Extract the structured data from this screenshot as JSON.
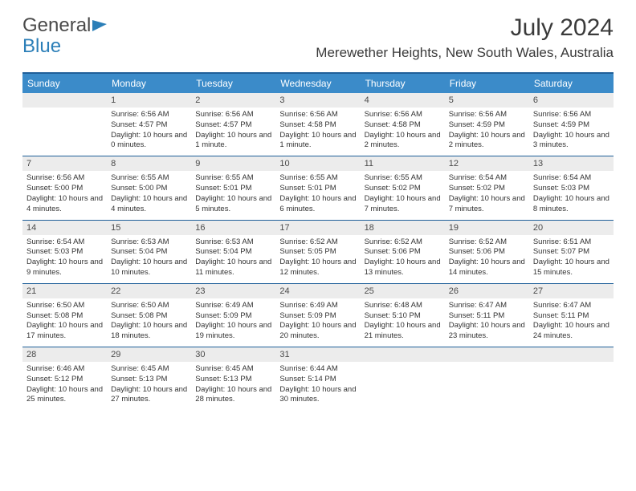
{
  "brand": {
    "part1": "General",
    "part2": "Blue"
  },
  "title": "July 2024",
  "location": "Merewether Heights, New South Wales, Australia",
  "colors": {
    "header_bg": "#3b8bc9",
    "rule": "#1f5f99",
    "daynum_bg": "#ececec",
    "text": "#333333"
  },
  "dow": [
    "Sunday",
    "Monday",
    "Tuesday",
    "Wednesday",
    "Thursday",
    "Friday",
    "Saturday"
  ],
  "weeks": [
    [
      {
        "n": "",
        "sr": "",
        "ss": "",
        "dl": ""
      },
      {
        "n": "1",
        "sr": "Sunrise: 6:56 AM",
        "ss": "Sunset: 4:57 PM",
        "dl": "Daylight: 10 hours and 0 minutes."
      },
      {
        "n": "2",
        "sr": "Sunrise: 6:56 AM",
        "ss": "Sunset: 4:57 PM",
        "dl": "Daylight: 10 hours and 1 minute."
      },
      {
        "n": "3",
        "sr": "Sunrise: 6:56 AM",
        "ss": "Sunset: 4:58 PM",
        "dl": "Daylight: 10 hours and 1 minute."
      },
      {
        "n": "4",
        "sr": "Sunrise: 6:56 AM",
        "ss": "Sunset: 4:58 PM",
        "dl": "Daylight: 10 hours and 2 minutes."
      },
      {
        "n": "5",
        "sr": "Sunrise: 6:56 AM",
        "ss": "Sunset: 4:59 PM",
        "dl": "Daylight: 10 hours and 2 minutes."
      },
      {
        "n": "6",
        "sr": "Sunrise: 6:56 AM",
        "ss": "Sunset: 4:59 PM",
        "dl": "Daylight: 10 hours and 3 minutes."
      }
    ],
    [
      {
        "n": "7",
        "sr": "Sunrise: 6:56 AM",
        "ss": "Sunset: 5:00 PM",
        "dl": "Daylight: 10 hours and 4 minutes."
      },
      {
        "n": "8",
        "sr": "Sunrise: 6:55 AM",
        "ss": "Sunset: 5:00 PM",
        "dl": "Daylight: 10 hours and 4 minutes."
      },
      {
        "n": "9",
        "sr": "Sunrise: 6:55 AM",
        "ss": "Sunset: 5:01 PM",
        "dl": "Daylight: 10 hours and 5 minutes."
      },
      {
        "n": "10",
        "sr": "Sunrise: 6:55 AM",
        "ss": "Sunset: 5:01 PM",
        "dl": "Daylight: 10 hours and 6 minutes."
      },
      {
        "n": "11",
        "sr": "Sunrise: 6:55 AM",
        "ss": "Sunset: 5:02 PM",
        "dl": "Daylight: 10 hours and 7 minutes."
      },
      {
        "n": "12",
        "sr": "Sunrise: 6:54 AM",
        "ss": "Sunset: 5:02 PM",
        "dl": "Daylight: 10 hours and 7 minutes."
      },
      {
        "n": "13",
        "sr": "Sunrise: 6:54 AM",
        "ss": "Sunset: 5:03 PM",
        "dl": "Daylight: 10 hours and 8 minutes."
      }
    ],
    [
      {
        "n": "14",
        "sr": "Sunrise: 6:54 AM",
        "ss": "Sunset: 5:03 PM",
        "dl": "Daylight: 10 hours and 9 minutes."
      },
      {
        "n": "15",
        "sr": "Sunrise: 6:53 AM",
        "ss": "Sunset: 5:04 PM",
        "dl": "Daylight: 10 hours and 10 minutes."
      },
      {
        "n": "16",
        "sr": "Sunrise: 6:53 AM",
        "ss": "Sunset: 5:04 PM",
        "dl": "Daylight: 10 hours and 11 minutes."
      },
      {
        "n": "17",
        "sr": "Sunrise: 6:52 AM",
        "ss": "Sunset: 5:05 PM",
        "dl": "Daylight: 10 hours and 12 minutes."
      },
      {
        "n": "18",
        "sr": "Sunrise: 6:52 AM",
        "ss": "Sunset: 5:06 PM",
        "dl": "Daylight: 10 hours and 13 minutes."
      },
      {
        "n": "19",
        "sr": "Sunrise: 6:52 AM",
        "ss": "Sunset: 5:06 PM",
        "dl": "Daylight: 10 hours and 14 minutes."
      },
      {
        "n": "20",
        "sr": "Sunrise: 6:51 AM",
        "ss": "Sunset: 5:07 PM",
        "dl": "Daylight: 10 hours and 15 minutes."
      }
    ],
    [
      {
        "n": "21",
        "sr": "Sunrise: 6:50 AM",
        "ss": "Sunset: 5:08 PM",
        "dl": "Daylight: 10 hours and 17 minutes."
      },
      {
        "n": "22",
        "sr": "Sunrise: 6:50 AM",
        "ss": "Sunset: 5:08 PM",
        "dl": "Daylight: 10 hours and 18 minutes."
      },
      {
        "n": "23",
        "sr": "Sunrise: 6:49 AM",
        "ss": "Sunset: 5:09 PM",
        "dl": "Daylight: 10 hours and 19 minutes."
      },
      {
        "n": "24",
        "sr": "Sunrise: 6:49 AM",
        "ss": "Sunset: 5:09 PM",
        "dl": "Daylight: 10 hours and 20 minutes."
      },
      {
        "n": "25",
        "sr": "Sunrise: 6:48 AM",
        "ss": "Sunset: 5:10 PM",
        "dl": "Daylight: 10 hours and 21 minutes."
      },
      {
        "n": "26",
        "sr": "Sunrise: 6:47 AM",
        "ss": "Sunset: 5:11 PM",
        "dl": "Daylight: 10 hours and 23 minutes."
      },
      {
        "n": "27",
        "sr": "Sunrise: 6:47 AM",
        "ss": "Sunset: 5:11 PM",
        "dl": "Daylight: 10 hours and 24 minutes."
      }
    ],
    [
      {
        "n": "28",
        "sr": "Sunrise: 6:46 AM",
        "ss": "Sunset: 5:12 PM",
        "dl": "Daylight: 10 hours and 25 minutes."
      },
      {
        "n": "29",
        "sr": "Sunrise: 6:45 AM",
        "ss": "Sunset: 5:13 PM",
        "dl": "Daylight: 10 hours and 27 minutes."
      },
      {
        "n": "30",
        "sr": "Sunrise: 6:45 AM",
        "ss": "Sunset: 5:13 PM",
        "dl": "Daylight: 10 hours and 28 minutes."
      },
      {
        "n": "31",
        "sr": "Sunrise: 6:44 AM",
        "ss": "Sunset: 5:14 PM",
        "dl": "Daylight: 10 hours and 30 minutes."
      },
      {
        "n": "",
        "sr": "",
        "ss": "",
        "dl": ""
      },
      {
        "n": "",
        "sr": "",
        "ss": "",
        "dl": ""
      },
      {
        "n": "",
        "sr": "",
        "ss": "",
        "dl": ""
      }
    ]
  ]
}
